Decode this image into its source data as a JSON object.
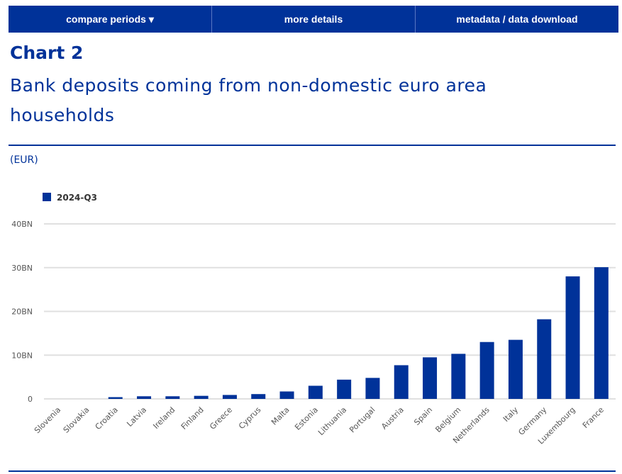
{
  "nav": {
    "compare": "compare periods ▾",
    "details": "more details",
    "metadata": "metadata / data download"
  },
  "title": "Chart 2",
  "subtitle": "Bank deposits coming from non-domestic euro area households",
  "unit": "(EUR)",
  "colors": {
    "bar": "#003299"
  },
  "chart_data": {
    "type": "bar",
    "legend": [
      "2024-Q3"
    ],
    "legend_position": "top-left",
    "categories": [
      "Slovenia",
      "Slovakia",
      "Croatia",
      "Latvia",
      "Ireland",
      "Finland",
      "Greece",
      "Cyprus",
      "Malta",
      "Estonia",
      "Lithuania",
      "Portugal",
      "Austria",
      "Spain",
      "Belgium",
      "Netherlands",
      "Italy",
      "Germany",
      "Luxembourg",
      "France"
    ],
    "values": [
      0.0,
      0.0,
      0.4,
      0.6,
      0.6,
      0.7,
      0.9,
      1.1,
      1.7,
      3.0,
      4.4,
      4.8,
      7.7,
      9.5,
      10.3,
      13.0,
      13.5,
      18.2,
      28.0,
      30.1
    ],
    "ylim": [
      0,
      40
    ],
    "yticks": [
      0,
      10,
      20,
      30,
      40
    ],
    "ytick_labels": [
      "0",
      "10BN",
      "20BN",
      "30BN",
      "40BN"
    ],
    "ylabel": "(EUR)",
    "grid": true
  }
}
